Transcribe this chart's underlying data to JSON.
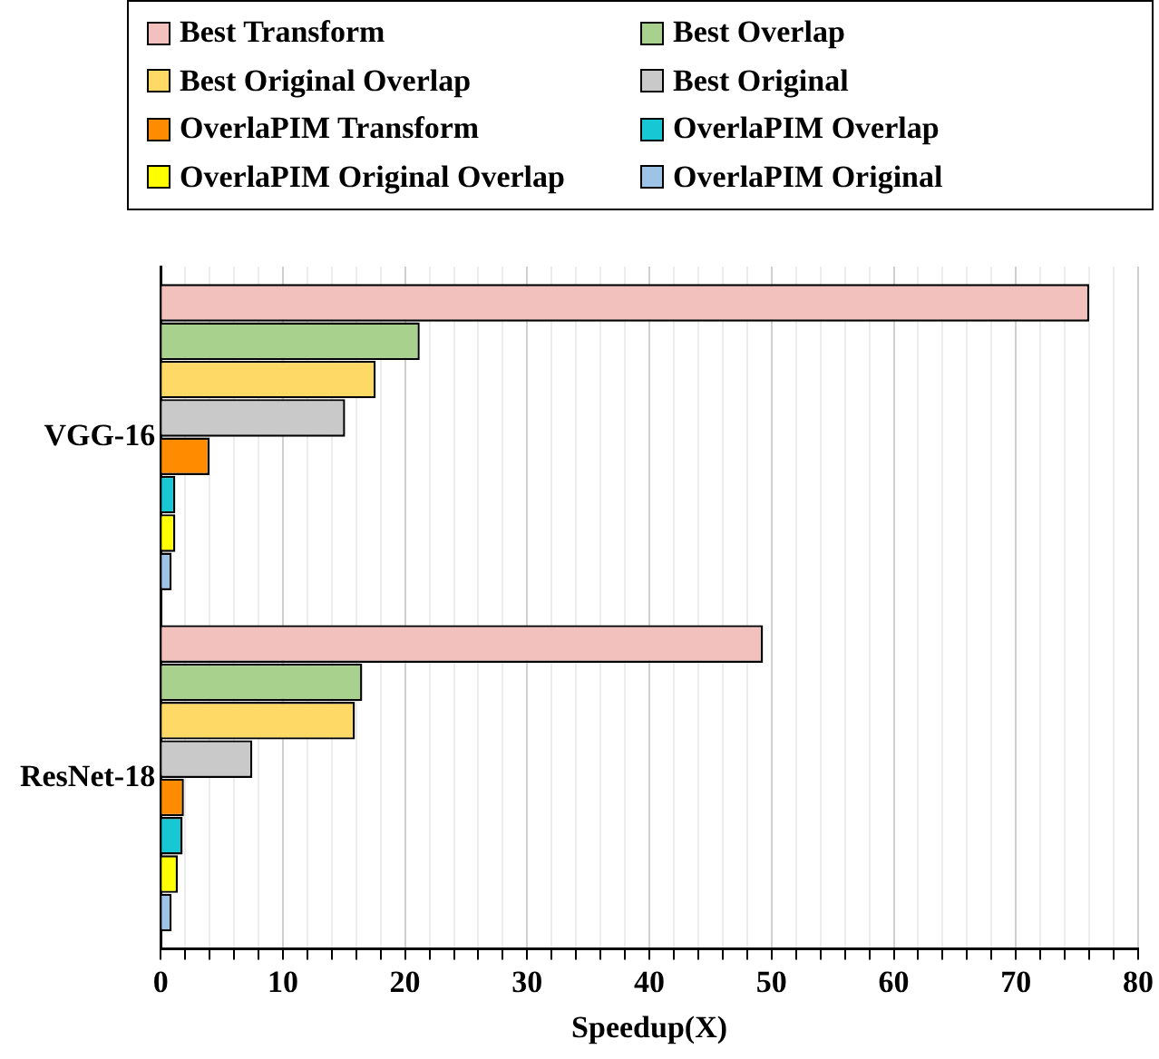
{
  "chart_data": {
    "type": "bar",
    "orientation": "horizontal",
    "categories": [
      "VGG-16",
      "ResNet-18"
    ],
    "xlabel": "Speedup(X)",
    "xlim": [
      0,
      80
    ],
    "xticks": [
      0,
      {
        "value": 2,
        "label": null
      },
      {
        "value": 4,
        "label": null
      },
      {
        "value": 6,
        "label": null
      },
      {
        "value": 8,
        "label": null
      },
      10,
      {
        "value": 12,
        "label": null
      },
      {
        "value": 14,
        "label": null
      },
      {
        "value": 16,
        "label": null
      },
      {
        "value": 18,
        "label": null
      },
      20,
      {
        "value": 22,
        "label": null
      },
      {
        "value": 24,
        "label": null
      },
      {
        "value": 26,
        "label": null
      },
      {
        "value": 28,
        "label": null
      },
      30,
      {
        "value": 32,
        "label": null
      },
      {
        "value": 34,
        "label": null
      },
      {
        "value": 36,
        "label": null
      },
      {
        "value": 38,
        "label": null
      },
      40,
      {
        "value": 42,
        "label": null
      },
      {
        "value": 44,
        "label": null
      },
      {
        "value": 46,
        "label": null
      },
      {
        "value": 48,
        "label": null
      },
      50,
      {
        "value": 52,
        "label": null
      },
      {
        "value": 54,
        "label": null
      },
      {
        "value": 56,
        "label": null
      },
      {
        "value": 58,
        "label": null
      },
      60,
      {
        "value": 62,
        "label": null
      },
      {
        "value": 64,
        "label": null
      },
      {
        "value": 66,
        "label": null
      },
      {
        "value": 68,
        "label": null
      },
      70,
      {
        "value": 72,
        "label": null
      },
      {
        "value": 74,
        "label": null
      },
      {
        "value": 76,
        "label": null
      },
      {
        "value": 78,
        "label": null
      },
      80
    ],
    "grid": "x",
    "legend": "top",
    "series": [
      {
        "name": "Best Transform",
        "color": "#f2c1be",
        "values": [
          76.0,
          49.3
        ]
      },
      {
        "name": "Best Overlap",
        "color": "#a9d18e",
        "values": [
          21.2,
          16.5
        ]
      },
      {
        "name": "Best Original Overlap",
        "color": "#ffd966",
        "values": [
          17.6,
          15.9
        ]
      },
      {
        "name": "Best Original",
        "color": "#c9c9c9",
        "values": [
          15.1,
          7.5
        ]
      },
      {
        "name": "OverlaPIM Transform",
        "color": "#ff8c00",
        "values": [
          4.0,
          1.9
        ]
      },
      {
        "name": "OverlaPIM Overlap",
        "color": "#17c8d4",
        "values": [
          1.2,
          1.8
        ]
      },
      {
        "name": "OverlaPIM Original Overlap",
        "color": "#ffff00",
        "values": [
          1.2,
          1.4
        ]
      },
      {
        "name": "OverlaPIM Original",
        "color": "#9dc3e6",
        "values": [
          0.9,
          0.9
        ]
      }
    ]
  }
}
